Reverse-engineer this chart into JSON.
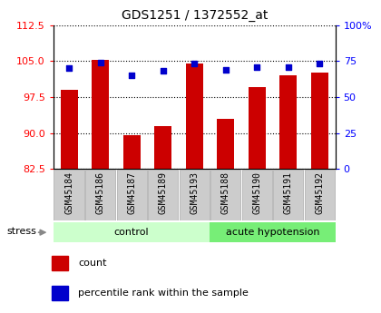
{
  "title": "GDS1251 / 1372552_at",
  "samples": [
    "GSM45184",
    "GSM45186",
    "GSM45187",
    "GSM45189",
    "GSM45193",
    "GSM45188",
    "GSM45190",
    "GSM45191",
    "GSM45192"
  ],
  "counts": [
    99.0,
    105.2,
    89.5,
    91.5,
    104.5,
    93.0,
    99.5,
    102.0,
    102.5
  ],
  "percentiles": [
    70.0,
    74.0,
    65.0,
    68.0,
    73.5,
    69.0,
    70.5,
    71.0,
    73.5
  ],
  "ylim_left": [
    82.5,
    112.5
  ],
  "ylim_right": [
    0,
    100
  ],
  "yticks_left": [
    82.5,
    90.0,
    97.5,
    105.0,
    112.5
  ],
  "yticks_right": [
    0,
    25,
    50,
    75,
    100
  ],
  "bar_color": "#cc0000",
  "dot_color": "#0000cc",
  "group_labels": [
    "control",
    "acute hypotension"
  ],
  "control_count": 5,
  "acute_count": 4,
  "group_color_control": "#ccffcc",
  "group_color_acute": "#77ee77",
  "bar_bottom": 82.5,
  "stress_label": "stress",
  "legend_count": "count",
  "legend_percentile": "percentile rank within the sample",
  "tick_bg": "#cccccc"
}
